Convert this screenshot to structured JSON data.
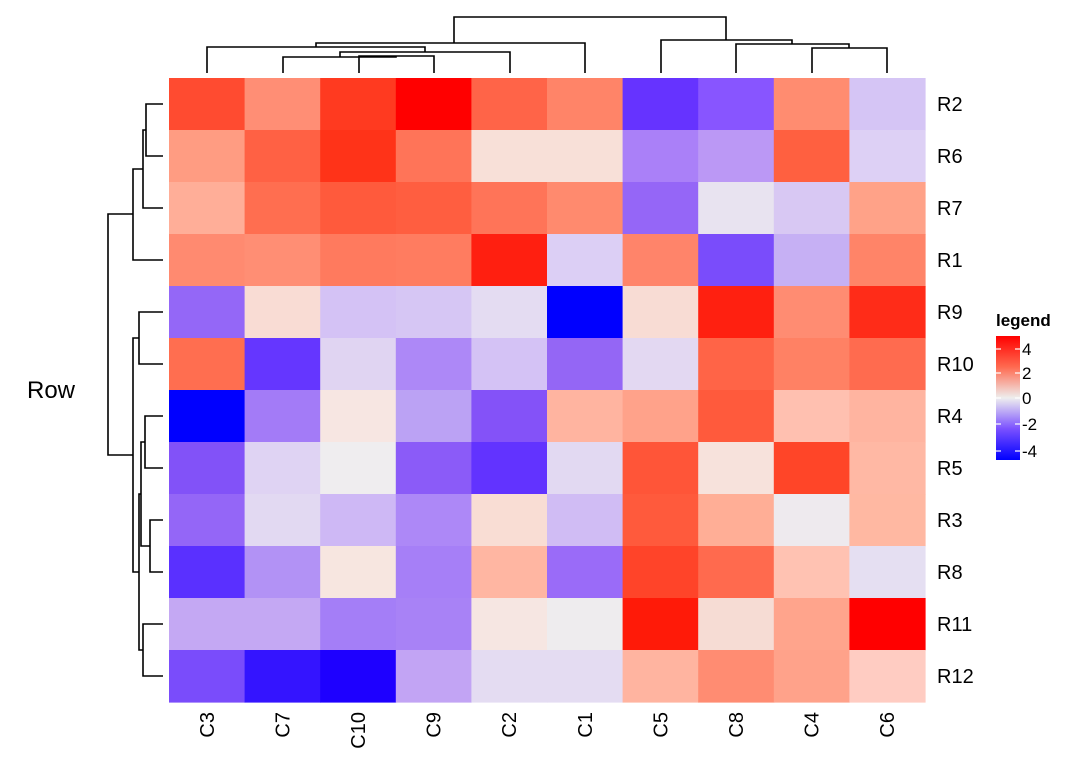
{
  "chart_data": {
    "type": "heatmap",
    "title": "",
    "row_axis_label": "Row",
    "columns": [
      "C3",
      "C7",
      "C10",
      "C9",
      "C2",
      "C1",
      "C5",
      "C8",
      "C4",
      "C6"
    ],
    "rows": [
      "R2",
      "R6",
      "R7",
      "R1",
      "R9",
      "R10",
      "R4",
      "R5",
      "R3",
      "R8",
      "R11",
      "R12"
    ],
    "values": [
      [
        3.4,
        2.0,
        3.9,
        4.5,
        3.0,
        2.4,
        -3.6,
        -3.0,
        2.2,
        -0.9
      ],
      [
        1.8,
        3.0,
        4.0,
        2.6,
        0.4,
        0.4,
        -1.9,
        -1.5,
        3.0,
        -0.5
      ],
      [
        1.2,
        2.6,
        3.1,
        3.1,
        2.6,
        2.1,
        -2.4,
        -0.1,
        -0.8,
        1.6
      ],
      [
        2.0,
        1.9,
        2.4,
        2.4,
        4.0,
        -0.8,
        2.2,
        -3.2,
        -1.1,
        2.4
      ],
      [
        -2.2,
        0.5,
        -1.0,
        -1.0,
        -0.3,
        -4.5,
        0.6,
        3.9,
        2.0,
        3.7
      ],
      [
        2.7,
        -3.4,
        -0.6,
        -1.9,
        -1.0,
        -2.3,
        -0.5,
        2.8,
        2.3,
        2.7
      ],
      [
        -4.5,
        -2.1,
        0.3,
        -1.3,
        -2.8,
        1.5,
        1.8,
        3.0,
        1.0,
        1.2
      ],
      [
        -2.6,
        -0.6,
        0.0,
        -2.6,
        -3.7,
        -0.4,
        3.0,
        0.4,
        3.4,
        1.2
      ],
      [
        -2.2,
        -0.5,
        -1.2,
        -1.9,
        0.6,
        -1.0,
        3.0,
        1.4,
        0.1,
        1.4
      ],
      [
        -3.6,
        -1.3,
        0.3,
        -1.9,
        1.2,
        -2.3,
        3.4,
        2.6,
        1.0,
        -0.4
      ],
      [
        -1.2,
        -1.2,
        -1.9,
        -1.7,
        0.3,
        0.0,
        4.3,
        0.5,
        1.6,
        4.5
      ],
      [
        -2.8,
        -4.1,
        -4.4,
        -1.3,
        -0.5,
        -0.5,
        1.3,
        2.0,
        1.6,
        0.8
      ]
    ],
    "colors": [
      [
        "#ff4b30",
        "#ff8e75",
        "#ff3a20",
        "#ff0000",
        "#ff6448",
        "#ff8468",
        "#6633ff",
        "#8855ff",
        "#ff8c70",
        "#d5c5f5"
      ],
      [
        "#ff9c82",
        "#ff6144",
        "#ff3318",
        "#ff7458",
        "#f8e0d8",
        "#f8e0d8",
        "#aa80f8",
        "#bb98f5",
        "#ff6040",
        "#ddd0f5"
      ],
      [
        "#ffae98",
        "#ff6e50",
        "#ff5a3c",
        "#ff5e40",
        "#ff7458",
        "#ff8a6e",
        "#9566f7",
        "#e8e3f0",
        "#d8c8f3",
        "#ffa288"
      ],
      [
        "#ff8a70",
        "#ff8e74",
        "#ff7a5e",
        "#ff7c60",
        "#ff1f10",
        "#dccff5",
        "#ff846a",
        "#7a4cfb",
        "#c6b0f4",
        "#ff8468"
      ],
      [
        "#9467f7",
        "#f9dcd4",
        "#d4c2f5",
        "#d6c6f4",
        "#e4dcf2",
        "#0000ff",
        "#f8dcd4",
        "#ff2010",
        "#ff8c72",
        "#ff2c18"
      ],
      [
        "#ff6e50",
        "#6536ff",
        "#e0d4f2",
        "#ad88f7",
        "#d4c2f5",
        "#9466f5",
        "#e3d8f2",
        "#ff6447",
        "#ff8164",
        "#ff6b4f"
      ],
      [
        "#0000ff",
        "#a37bf7",
        "#f7e6e2",
        "#bba2f4",
        "#8452f8",
        "#ffb4a0",
        "#ffa28a",
        "#ff5a3c",
        "#ffc0b0",
        "#ffb4a0"
      ],
      [
        "#8252f8",
        "#dfd3f3",
        "#efedef",
        "#8b5bf8",
        "#6233ff",
        "#e2d9f2",
        "#ff5538",
        "#f7e2dc",
        "#ff4528",
        "#ffb8a4"
      ],
      [
        "#9466f7",
        "#e2d9f2",
        "#ceb8f5",
        "#ad88f7",
        "#f9ddd4",
        "#d0bcf4",
        "#ff5a3c",
        "#ffae96",
        "#eeeaee",
        "#ffb8a2"
      ],
      [
        "#5a30ff",
        "#b292f5",
        "#f7e6e0",
        "#a67ff7",
        "#ffb6a2",
        "#9a6bf8",
        "#ff4429",
        "#ff6a4e",
        "#ffc2b2",
        "#e5dff2"
      ],
      [
        "#c4a8f3",
        "#c4a8f3",
        "#a47ef7",
        "#a882f6",
        "#f6e6e2",
        "#eeecee",
        "#ff1a08",
        "#f6dcd4",
        "#ffa48c",
        "#ff0000"
      ],
      [
        "#7a4cfb",
        "#3414ff",
        "#1e00ff",
        "#c2a4f4",
        "#e4dcf2",
        "#e4dcf2",
        "#ffb4a0",
        "#ff8c72",
        "#ffa28a",
        "#ffccc2"
      ]
    ],
    "legend": {
      "title": "legend",
      "ticks": [
        "4",
        "2",
        "0",
        "-2",
        "-4"
      ],
      "range": [
        -4.5,
        4.5
      ],
      "low_color": "#0000ff",
      "mid_color": "#eeeeee",
      "high_color": "#ff0000"
    },
    "col_dendrogram": "((C3,((C7,(C10,C9)),C2)),C1),(C5,(C8,(C4,C6)))",
    "row_dendrogram": "(((R2,R6),R7),R1),((R9,R10),(((R4,R5),(R3,R8)),(R11,R12)))"
  }
}
